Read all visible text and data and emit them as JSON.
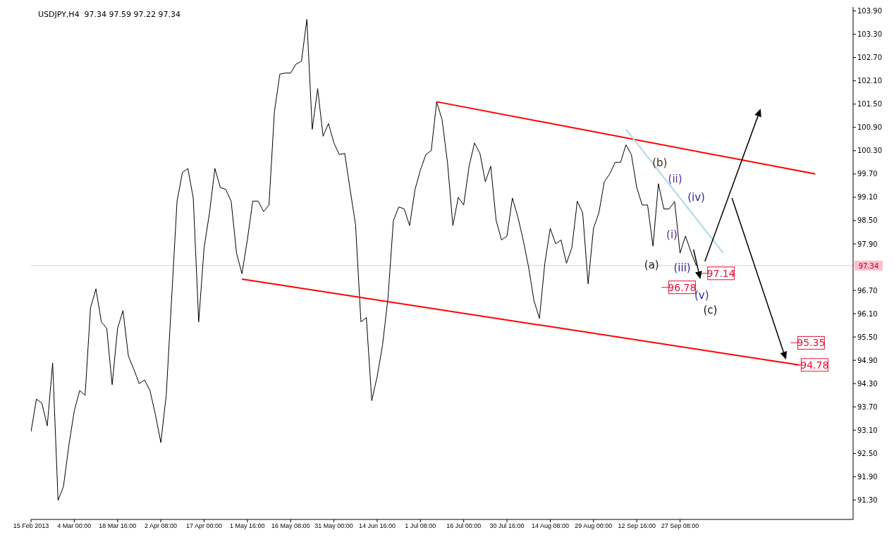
{
  "chart_data": {
    "type": "line",
    "title": "USDJPY,H4  97.34 97.59 97.22 97.34",
    "categories": [
      "15 Feb 2013",
      null,
      null,
      null,
      null,
      null,
      null,
      null,
      "4 Mar 00:00",
      null,
      null,
      null,
      null,
      null,
      null,
      null,
      "18 Mar 16:00",
      null,
      null,
      null,
      null,
      null,
      null,
      null,
      "2 Apr 08:00",
      null,
      null,
      null,
      null,
      null,
      null,
      null,
      "17 Apr 00:00",
      null,
      null,
      null,
      null,
      null,
      null,
      null,
      "1 May 16:00",
      null,
      null,
      null,
      null,
      null,
      null,
      null,
      "16 May 08:00",
      null,
      null,
      null,
      null,
      null,
      null,
      null,
      "31 May 00:00",
      null,
      null,
      null,
      null,
      null,
      null,
      null,
      "14 Jun 16:00",
      null,
      null,
      null,
      null,
      null,
      null,
      null,
      "1 Jul 08:00",
      null,
      null,
      null,
      null,
      null,
      null,
      null,
      "16 Jul 00:00",
      null,
      null,
      null,
      null,
      null,
      null,
      null,
      "30 Jul 16:00",
      null,
      null,
      null,
      null,
      null,
      null,
      null,
      "14 Aug 08:00",
      null,
      null,
      null,
      null,
      null,
      null,
      null,
      "29 Aug 00:00",
      null,
      null,
      null,
      null,
      null,
      null,
      null,
      "12 Sep 16:00",
      null,
      null,
      null,
      null,
      null,
      null,
      null,
      "27 Sep 08:00",
      null,
      null,
      null,
      null,
      null,
      null,
      null,
      null,
      null,
      null,
      null,
      null,
      null,
      null,
      null,
      null,
      null,
      null,
      null,
      null,
      null,
      null,
      null,
      null,
      null,
      null,
      null,
      null,
      null,
      null,
      null,
      null
    ],
    "ylim": [
      90.8,
      104.0
    ],
    "yticks": [
      {
        "value": 91.3,
        "label": "91.30"
      },
      {
        "value": 91.9,
        "label": "91.90"
      },
      {
        "value": 92.5,
        "label": "92.50"
      },
      {
        "value": 93.1,
        "label": "93.10"
      },
      {
        "value": 93.7,
        "label": "93.70"
      },
      {
        "value": 94.3,
        "label": "94.30"
      },
      {
        "value": 94.9,
        "label": "94.90"
      },
      {
        "value": 95.5,
        "label": "95.50"
      },
      {
        "value": 96.1,
        "label": "96.10"
      },
      {
        "value": 96.7,
        "label": "96.70"
      },
      {
        "value": 97.9,
        "label": "97.90"
      },
      {
        "value": 98.5,
        "label": "98.50"
      },
      {
        "value": 99.1,
        "label": "99.10"
      },
      {
        "value": 99.7,
        "label": "99.70"
      },
      {
        "value": 100.3,
        "label": "100.30"
      },
      {
        "value": 100.9,
        "label": "100.90"
      },
      {
        "value": 101.5,
        "label": "101.50"
      },
      {
        "value": 102.1,
        "label": "102.10"
      },
      {
        "value": 102.7,
        "label": "102.70"
      },
      {
        "value": 103.3,
        "label": "103.30"
      },
      {
        "value": 103.9,
        "label": "103.90"
      }
    ],
    "grid": false,
    "marker": "none",
    "line_style": "solid",
    "series": [
      {
        "color": "#000000",
        "values": [
          93.06,
          93.9,
          93.8,
          93.21,
          94.83,
          91.29,
          91.65,
          92.71,
          93.6,
          94.12,
          94.0,
          96.25,
          96.74,
          95.89,
          95.72,
          94.27,
          95.72,
          96.18,
          95.01,
          94.67,
          94.3,
          94.39,
          94.12,
          93.5,
          92.78,
          94.0,
          96.5,
          99.0,
          99.74,
          99.84,
          99.08,
          95.89,
          97.8,
          98.7,
          99.84,
          99.35,
          99.3,
          99.0,
          97.66,
          97.13,
          98.0,
          99.0,
          99.0,
          98.73,
          98.9,
          101.3,
          102.27,
          102.3,
          102.3,
          102.53,
          102.6,
          103.68,
          100.85,
          101.9,
          100.67,
          101.0,
          100.5,
          100.2,
          100.23,
          99.3,
          98.4,
          95.89,
          96.0,
          93.86,
          94.48,
          95.3,
          96.5,
          98.5,
          98.85,
          98.8,
          98.37,
          99.3,
          99.8,
          100.2,
          100.3,
          101.56,
          101.1,
          100.0,
          98.37,
          99.1,
          98.9,
          99.9,
          100.5,
          100.23,
          99.5,
          99.9,
          98.5,
          98.0,
          98.1,
          99.08,
          98.6,
          98.0,
          97.3,
          96.43,
          95.98,
          97.4,
          98.3,
          97.9,
          98.0,
          97.4,
          97.8,
          99.0,
          98.7,
          96.87,
          98.3,
          98.7,
          99.5,
          99.7,
          100.0,
          100.0,
          100.45,
          100.2,
          99.35,
          98.9,
          98.9,
          97.84,
          99.45,
          98.8,
          98.8,
          98.99,
          97.66,
          98.1,
          97.7,
          97.34,
          null,
          null,
          null,
          null,
          null,
          null,
          null,
          null,
          null,
          null,
          null,
          null,
          null,
          null,
          null,
          null,
          null,
          null,
          null,
          null,
          null,
          null,
          null,
          null,
          null,
          null,
          null,
          null,
          null
        ]
      },
      {
        "color": "#ff0000",
        "values": [
          null,
          null,
          null,
          null,
          null,
          null,
          null,
          null,
          null,
          null,
          null,
          null,
          null,
          null,
          null,
          null,
          null,
          null,
          null,
          null,
          null,
          null,
          null,
          null,
          null,
          null,
          null,
          null,
          null,
          null,
          null,
          null,
          null,
          null,
          null,
          null,
          null,
          null,
          null,
          null,
          null,
          null,
          null,
          null,
          null,
          null,
          null,
          null,
          null,
          null,
          null,
          null,
          null,
          null,
          null,
          null,
          null,
          null,
          null,
          null,
          null,
          null,
          null,
          null,
          null,
          null,
          null,
          null,
          null,
          null,
          null,
          null,
          null,
          null,
          null,
          101.56,
          null,
          null,
          null,
          null,
          null,
          null,
          null,
          null,
          null,
          null,
          null,
          null,
          null,
          null,
          null,
          null,
          null,
          null,
          null,
          null,
          null,
          null,
          null,
          null,
          null,
          null,
          null,
          null,
          null,
          null,
          null,
          null,
          null,
          null,
          null,
          null,
          null,
          null,
          null,
          null,
          null,
          null,
          null,
          null,
          null,
          null,
          null,
          null,
          null,
          null,
          null,
          null,
          null,
          null,
          null,
          null,
          null,
          null,
          null,
          null,
          null,
          null,
          null,
          null,
          null,
          null,
          null,
          null,
          null,
          99.7,
          null,
          null,
          null,
          null,
          null,
          null,
          null
        ]
      },
      {
        "color": "#ff0000",
        "values": [
          null,
          null,
          null,
          null,
          null,
          null,
          null,
          null,
          null,
          null,
          null,
          null,
          null,
          null,
          null,
          null,
          null,
          null,
          null,
          null,
          null,
          null,
          null,
          null,
          null,
          null,
          null,
          null,
          null,
          null,
          null,
          null,
          null,
          null,
          null,
          null,
          null,
          null,
          null,
          96.99,
          null,
          null,
          null,
          null,
          null,
          null,
          null,
          null,
          null,
          null,
          null,
          null,
          null,
          null,
          null,
          null,
          null,
          null,
          null,
          null,
          null,
          null,
          null,
          null,
          null,
          null,
          null,
          null,
          null,
          null,
          null,
          null,
          null,
          null,
          null,
          null,
          null,
          null,
          null,
          null,
          null,
          null,
          null,
          null,
          null,
          null,
          null,
          null,
          null,
          null,
          null,
          null,
          null,
          null,
          null,
          null,
          null,
          null,
          null,
          null,
          null,
          null,
          null,
          null,
          null,
          null,
          null,
          null,
          null,
          null,
          null,
          null,
          null,
          null,
          null,
          null,
          null,
          null,
          null,
          null,
          null,
          null,
          null,
          null,
          null,
          null,
          null,
          null,
          null,
          null,
          null,
          null,
          null,
          null,
          null,
          null,
          null,
          null,
          null,
          null,
          null,
          null,
          94.78,
          null,
          null,
          null,
          null,
          null,
          null,
          null,
          null,
          null,
          null
        ]
      },
      {
        "color": "#add8e6",
        "values": [
          null,
          null,
          null,
          null,
          null,
          null,
          null,
          null,
          null,
          null,
          null,
          null,
          null,
          null,
          null,
          null,
          null,
          null,
          null,
          null,
          null,
          null,
          null,
          null,
          null,
          null,
          null,
          null,
          null,
          null,
          null,
          null,
          null,
          null,
          null,
          null,
          null,
          null,
          null,
          null,
          null,
          null,
          null,
          null,
          null,
          null,
          null,
          null,
          null,
          null,
          null,
          null,
          null,
          null,
          null,
          null,
          null,
          null,
          null,
          null,
          null,
          null,
          null,
          null,
          null,
          null,
          null,
          null,
          null,
          null,
          null,
          null,
          null,
          null,
          null,
          null,
          null,
          null,
          null,
          null,
          null,
          null,
          null,
          null,
          null,
          null,
          null,
          null,
          null,
          null,
          null,
          null,
          null,
          null,
          null,
          null,
          null,
          null,
          null,
          null,
          null,
          null,
          null,
          null,
          null,
          null,
          null,
          null,
          null,
          null,
          100.85,
          null,
          null,
          null,
          null,
          null,
          null,
          null,
          null,
          null,
          null,
          null,
          null,
          null,
          null,
          null,
          null,
          null,
          97.66,
          null,
          null,
          null,
          null,
          null,
          null,
          null,
          null,
          null,
          null,
          null,
          null,
          null,
          null,
          null,
          null,
          null,
          null,
          null,
          null,
          null,
          null,
          null,
          null
        ]
      }
    ],
    "ref_lines": [
      {
        "axis": "y",
        "value": 97.34,
        "label": "97.34",
        "color": "#ffc0cb"
      }
    ],
    "annotations": [
      "97.14",
      "96.78",
      "95.35",
      "94.78",
      "(a)",
      "(b)",
      "(c)",
      "(i)",
      "(ii)",
      "(iii)",
      "(iv)",
      "(v)"
    ]
  }
}
